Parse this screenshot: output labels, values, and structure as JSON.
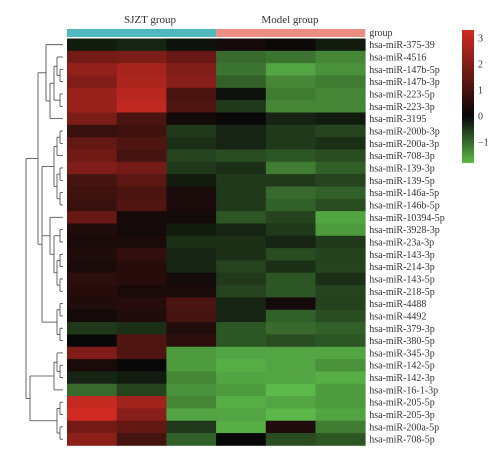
{
  "chart_data": {
    "type": "heatmap",
    "groups": [
      {
        "name": "SJZT group",
        "color": "#50b8bf",
        "columns": 3
      },
      {
        "name": "Model group",
        "color": "#ec8d84",
        "columns": 3
      }
    ],
    "group_track_label": "group",
    "rows": [
      "hsa-miR-375-39",
      "hsa-miR-4516",
      "hsa-miR-147b-5p",
      "hsa-miR-147b-3p",
      "hsa-miR-223-5p",
      "hsa-miR-223-3p",
      "hsa-miR-3195",
      "hsa-miR-200b-3p",
      "hsa-miR-200a-3p",
      "hsa-miR-708-3p",
      "hsa-miR-139-3p",
      "hsa-miR-139-5p",
      "hsa-miR-146a-5p",
      "hsa-miR-146b-5p",
      "hsa-miR-10394-5p",
      "hsa-miR-3928-3p",
      "hsa-miR-23a-3p",
      "hsa-miR-143-3p",
      "hsa-miR-214-3p",
      "hsa-miR-143-5p",
      "hsa-miR-218-5p",
      "hsa-miR-4488",
      "hsa-miR-4492",
      "hsa-miR-379-3p",
      "hsa-miR-380-5p",
      "hsa-miR-345-3p",
      "hsa-miR-142-5p",
      "hsa-miR-142-3p",
      "hsa-miR-16-1-3p",
      "hsa-miR-205-5p",
      "hsa-miR-205-3p",
      "hsa-miR-200a-5p",
      "hsa-miR-708-5p"
    ],
    "values": [
      [
        -0.2,
        -0.3,
        -0.1,
        0.2,
        0.1,
        -0.2
      ],
      [
        1.8,
        1.9,
        1.6,
        -1.0,
        -1.1,
        -1.3
      ],
      [
        2.3,
        2.6,
        2.0,
        -1.1,
        -1.6,
        -1.4
      ],
      [
        2.0,
        2.7,
        2.1,
        -0.9,
        -1.3,
        -1.2
      ],
      [
        2.4,
        2.9,
        1.1,
        -0.1,
        -1.2,
        -1.3
      ],
      [
        2.4,
        3.0,
        1.2,
        -0.5,
        -1.3,
        -1.3
      ],
      [
        1.9,
        1.1,
        0.2,
        0.0,
        -0.3,
        -0.2
      ],
      [
        0.8,
        0.9,
        -0.5,
        -0.3,
        -0.5,
        -0.6
      ],
      [
        1.5,
        1.2,
        -0.4,
        -0.3,
        -0.5,
        -0.4
      ],
      [
        1.7,
        1.0,
        -0.6,
        -0.7,
        -0.8,
        -0.7
      ],
      [
        2.0,
        1.8,
        -0.5,
        -0.4,
        -1.2,
        -0.9
      ],
      [
        1.0,
        1.4,
        -0.2,
        -0.5,
        -0.5,
        -0.6
      ],
      [
        0.9,
        1.1,
        0.3,
        -0.5,
        -1.0,
        -0.9
      ],
      [
        0.8,
        1.2,
        0.3,
        -0.5,
        -0.9,
        -0.7
      ],
      [
        1.6,
        0.2,
        0.2,
        -0.8,
        -0.6,
        -1.6
      ],
      [
        0.4,
        0.2,
        -0.2,
        -0.3,
        -0.5,
        -1.5
      ],
      [
        0.3,
        0.3,
        -0.4,
        -0.4,
        -0.3,
        -0.5
      ],
      [
        0.4,
        0.7,
        -0.3,
        -0.4,
        -0.7,
        -0.6
      ],
      [
        0.3,
        0.5,
        -0.3,
        -0.6,
        -0.4,
        -0.6
      ],
      [
        0.6,
        0.5,
        0.2,
        -0.5,
        -0.8,
        -0.4
      ],
      [
        0.5,
        0.3,
        0.3,
        -0.6,
        -0.8,
        -0.6
      ],
      [
        0.4,
        0.5,
        1.1,
        -0.3,
        0.2,
        -0.6
      ],
      [
        0.2,
        0.4,
        1.0,
        -0.3,
        -0.9,
        -0.7
      ],
      [
        -0.5,
        -0.4,
        0.4,
        -0.8,
        -1.0,
        -0.9
      ],
      [
        0.0,
        1.2,
        0.6,
        -0.8,
        -0.7,
        -0.8
      ],
      [
        2.0,
        1.2,
        -1.5,
        -1.6,
        -1.6,
        -1.6
      ],
      [
        0.3,
        0.0,
        -1.5,
        -1.7,
        -1.6,
        -1.4
      ],
      [
        -0.3,
        -0.2,
        -1.3,
        -1.6,
        -1.6,
        -1.7
      ],
      [
        -1.0,
        -0.6,
        -1.4,
        -1.5,
        -1.8,
        -1.5
      ],
      [
        3.1,
        2.5,
        -1.3,
        -1.7,
        -1.6,
        -1.5
      ],
      [
        3.3,
        2.1,
        -1.6,
        -1.6,
        -1.8,
        -1.6
      ],
      [
        1.8,
        1.5,
        -0.5,
        -1.7,
        0.4,
        -1.2
      ],
      [
        2.2,
        1.0,
        -0.9,
        0.0,
        -0.7,
        -0.8
      ]
    ],
    "color_scale": {
      "min": -1.8,
      "max": 3.3,
      "low_color": "#5cb849",
      "mid_color": "#080808",
      "high_color": "#d02b22",
      "mid_value": 0.0
    },
    "colorbar_ticks": [
      3,
      2,
      1,
      0,
      -1
    ]
  }
}
